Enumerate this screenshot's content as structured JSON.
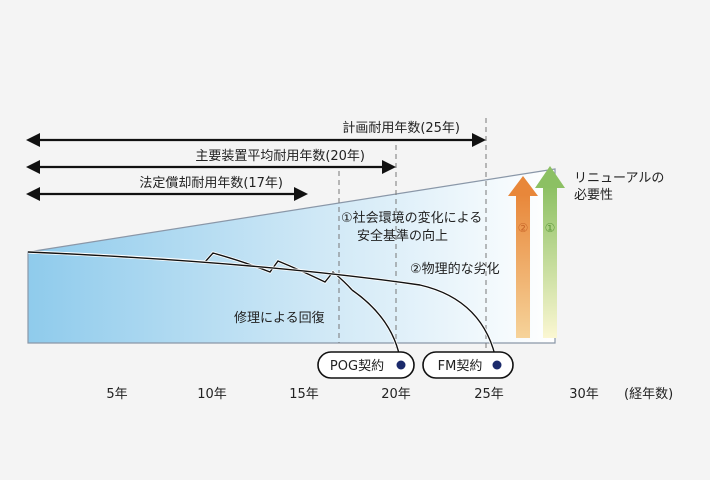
{
  "spans": [
    {
      "label": "計画耐用年数(25年)",
      "years": 25
    },
    {
      "label": "主要装置平均耐用年数(20年)",
      "years": 20
    },
    {
      "label": "法定償却耐用年数(17年)",
      "years": 17
    }
  ],
  "annotations": {
    "renewal": [
      "リニューアルの",
      "必要性"
    ],
    "social": [
      "①社会環境の変化による",
      "安全基準の向上"
    ],
    "physical": "②物理的な劣化",
    "repair": "修理による回復",
    "arrow_orange": "②",
    "arrow_green": "①"
  },
  "contracts": [
    {
      "label": "POG契約",
      "year": 20
    },
    {
      "label": "FM契約",
      "year": 25
    }
  ],
  "x_axis": {
    "ticks": [
      "5年",
      "10年",
      "15年",
      "20年",
      "25年",
      "30年"
    ],
    "unit_label": "(経年数)"
  },
  "colors": {
    "gradient_start": "#8fcbec",
    "gradient_end": "#ffffff",
    "contract_dot": "#1b2a6b",
    "arrow_orange": "#e8873a",
    "arrow_green": "#8cc063",
    "line": "#111111",
    "wedge_border": "#8a97a8"
  }
}
